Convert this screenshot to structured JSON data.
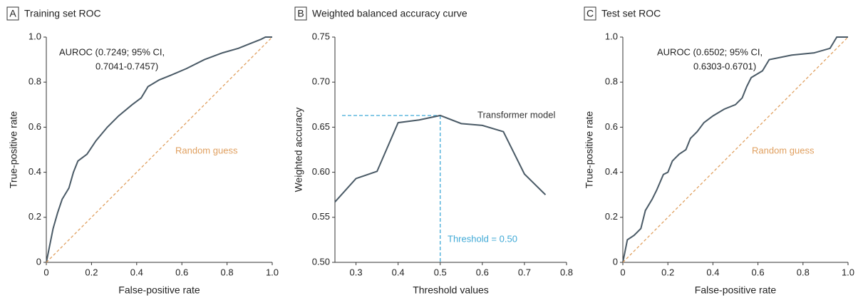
{
  "chart_data": [
    {
      "type": "line",
      "panel": "A",
      "title": "Training set ROC",
      "xlabel": "False-positive rate",
      "ylabel": "True-positive rate",
      "xlim": [
        0,
        1
      ],
      "ylim": [
        0,
        1
      ],
      "xticks": [
        0,
        0.2,
        0.4,
        0.6,
        0.8,
        {
          "value": 1,
          "label": "1.0"
        }
      ],
      "yticks": [
        0,
        0.2,
        0.4,
        0.6,
        0.8,
        {
          "value": 1,
          "label": "1.0"
        }
      ],
      "annotation": [
        "AUROC (0.7249; 95% CI,",
        "0.7041-0.7457)"
      ],
      "series": [
        {
          "color": "#4a5a66",
          "x": [
            0,
            0.01,
            0.02,
            0.03,
            0.05,
            0.07,
            0.1,
            0.12,
            0.14,
            0.18,
            0.22,
            0.27,
            0.32,
            0.38,
            0.42,
            0.45,
            0.5,
            0.55,
            0.62,
            0.7,
            0.78,
            0.85,
            0.9,
            0.95,
            0.97,
            1.0
          ],
          "values": [
            0,
            0.05,
            0.1,
            0.15,
            0.22,
            0.28,
            0.33,
            0.4,
            0.45,
            0.48,
            0.54,
            0.6,
            0.65,
            0.7,
            0.73,
            0.78,
            0.81,
            0.83,
            0.86,
            0.9,
            0.93,
            0.95,
            0.97,
            0.99,
            1.0,
            1.0
          ]
        },
        {
          "name": "Random guess",
          "color": "#e0a060",
          "dashed": true,
          "x": [
            0,
            1
          ],
          "values": [
            0,
            1
          ]
        }
      ]
    },
    {
      "type": "line",
      "panel": "B",
      "title": "Weighted balanced accuracy curve",
      "xlabel": "Threshold values",
      "ylabel": "Weighted accuracy",
      "xlim": [
        0.25,
        0.8
      ],
      "ylim": [
        0.5,
        0.75
      ],
      "xticks": [
        0.3,
        0.4,
        0.5,
        0.6,
        0.7,
        0.8
      ],
      "yticks": [
        {
          "value": 0.5,
          "label": "0.50"
        },
        0.55,
        {
          "value": 0.6,
          "label": "0.60"
        },
        0.65,
        {
          "value": 0.7,
          "label": "0.70"
        },
        0.75
      ],
      "threshold": {
        "x": 0.5,
        "y": 0.663,
        "label": "Threshold = 0.50",
        "color": "#3fa9d6"
      },
      "series": [
        {
          "name": "Transformer model",
          "color": "#4a5a66",
          "x": [
            0.25,
            0.3,
            0.35,
            0.4,
            0.45,
            0.5,
            0.55,
            0.6,
            0.65,
            0.7,
            0.75
          ],
          "values": [
            0.567,
            0.593,
            0.601,
            0.655,
            0.658,
            0.663,
            0.654,
            0.652,
            0.645,
            0.598,
            0.575
          ]
        }
      ]
    },
    {
      "type": "line",
      "panel": "C",
      "title": "Test set ROC",
      "xlabel": "False-positive rate",
      "ylabel": "True-positive rate",
      "xlim": [
        0,
        1
      ],
      "ylim": [
        0,
        1
      ],
      "xticks": [
        0,
        0.2,
        0.4,
        0.6,
        0.8,
        {
          "value": 1,
          "label": "1.0"
        }
      ],
      "yticks": [
        0,
        0.2,
        0.4,
        0.6,
        0.8,
        {
          "value": 1,
          "label": "1.0"
        }
      ],
      "annotation": [
        "AUROC (0.6502; 95% CI,",
        "0.6303-0.6701)"
      ],
      "series": [
        {
          "color": "#4a5a66",
          "x": [
            0,
            0.01,
            0.02,
            0.05,
            0.08,
            0.1,
            0.13,
            0.15,
            0.18,
            0.2,
            0.22,
            0.25,
            0.28,
            0.3,
            0.33,
            0.36,
            0.4,
            0.45,
            0.5,
            0.53,
            0.55,
            0.57,
            0.62,
            0.65,
            0.75,
            0.85,
            0.92,
            0.95,
            1.0
          ],
          "values": [
            0,
            0.05,
            0.1,
            0.12,
            0.15,
            0.23,
            0.28,
            0.32,
            0.39,
            0.4,
            0.45,
            0.48,
            0.5,
            0.55,
            0.58,
            0.62,
            0.65,
            0.68,
            0.7,
            0.73,
            0.78,
            0.82,
            0.85,
            0.9,
            0.92,
            0.93,
            0.95,
            1.0,
            1.0
          ]
        },
        {
          "name": "Random guess",
          "color": "#e0a060",
          "dashed": true,
          "x": [
            0,
            1
          ],
          "values": [
            0,
            1
          ]
        }
      ]
    }
  ]
}
